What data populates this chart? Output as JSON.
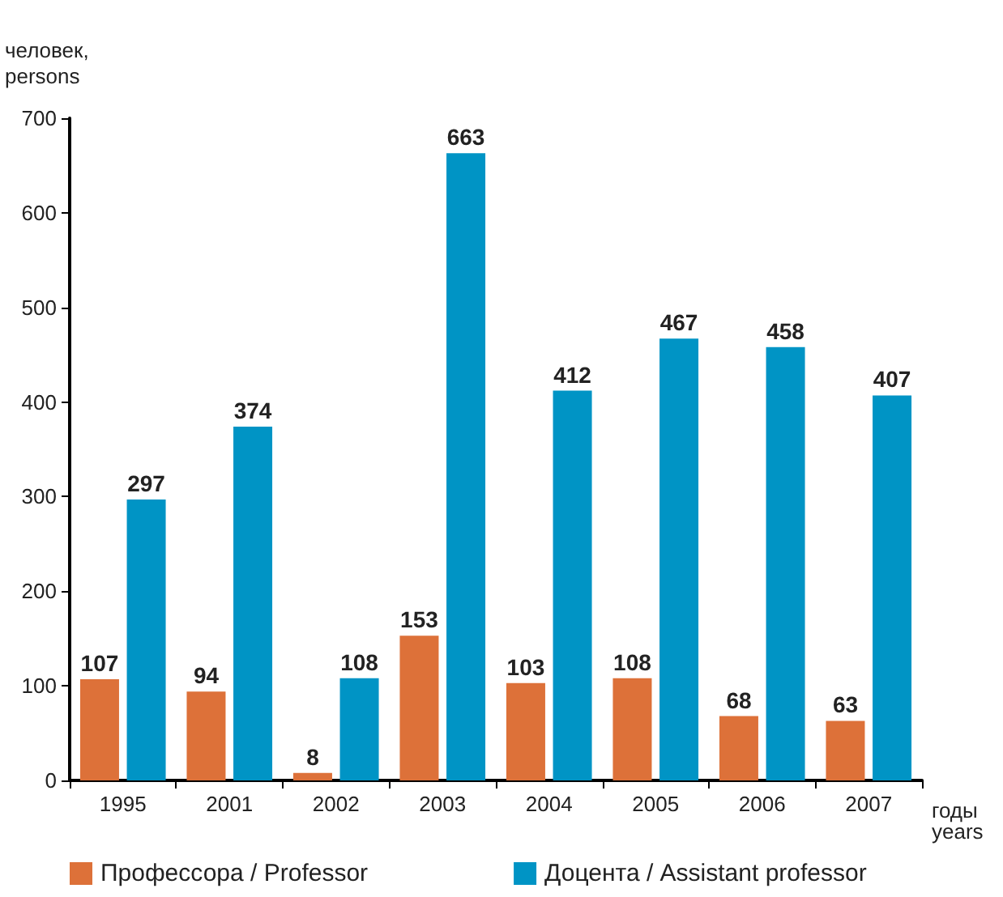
{
  "chart_data": {
    "type": "bar",
    "categories": [
      "1995",
      "2001",
      "2002",
      "2003",
      "2004",
      "2005",
      "2006",
      "2007"
    ],
    "series": [
      {
        "name": "Профессора / Professor",
        "color": "#dd7139",
        "values": [
          107,
          94,
          8,
          153,
          103,
          108,
          68,
          63
        ]
      },
      {
        "name": "Доцента / Assistant professor",
        "color": "#0094c5",
        "values": [
          297,
          374,
          108,
          663,
          412,
          467,
          458,
          407
        ]
      }
    ],
    "xlabel": "годы\nyears",
    "ylabel": "человек,\npersons",
    "ylim": [
      0,
      700
    ],
    "yticks": [
      0,
      100,
      200,
      300,
      400,
      500,
      600,
      700
    ],
    "grid": false,
    "legend": "bottom",
    "data_labels": true
  }
}
